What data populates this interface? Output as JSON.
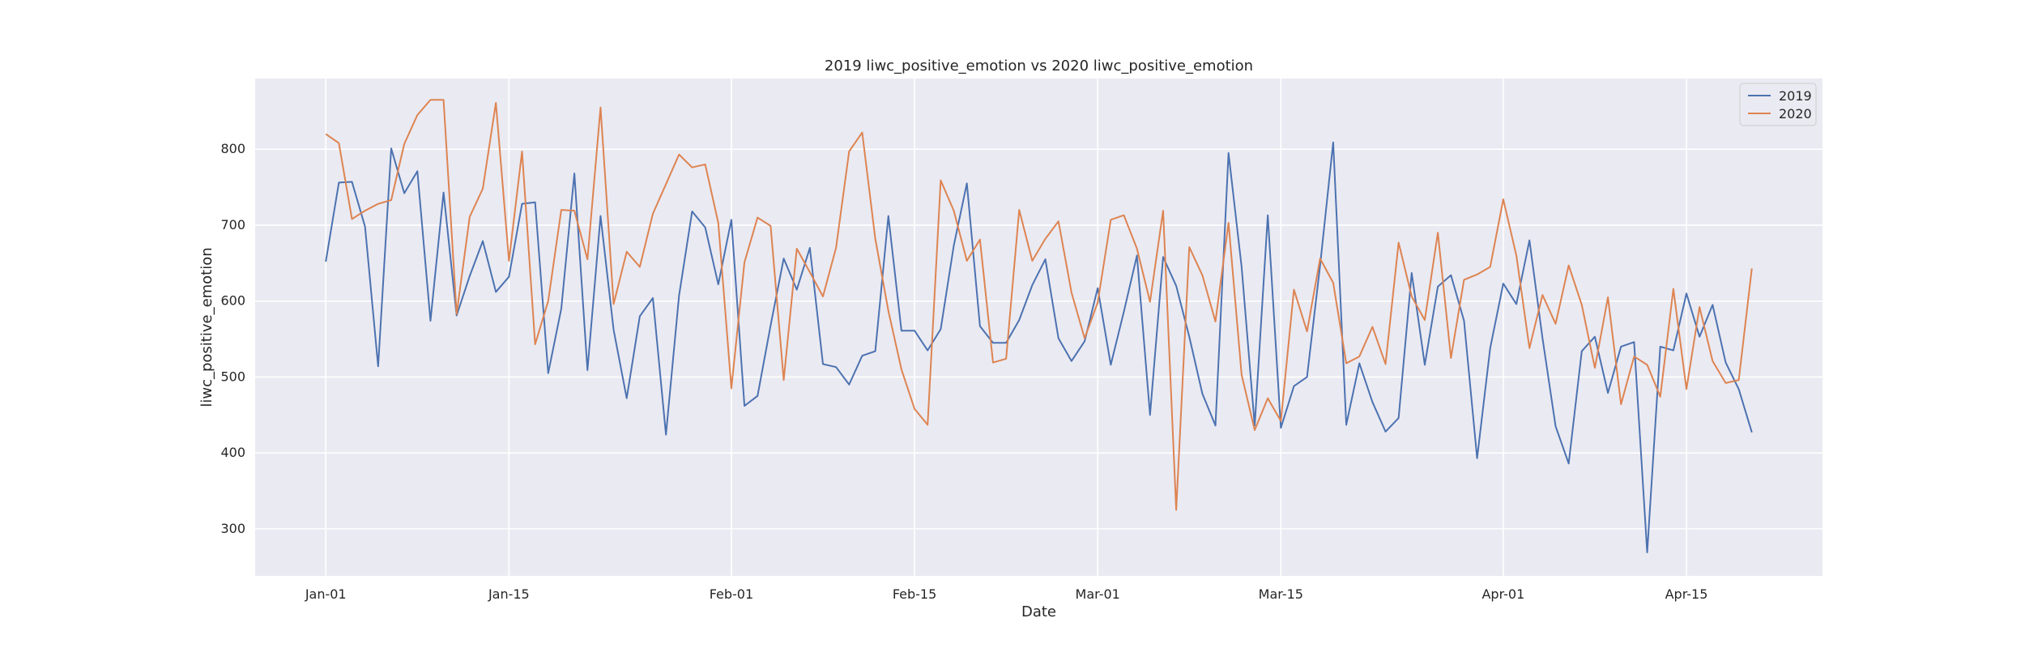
{
  "chart_data": {
    "type": "line",
    "title": "2019 liwc_positive_emotion vs 2020 liwc_positive_emotion",
    "xlabel": "Date",
    "ylabel": "liwc_positive_emotion",
    "x_ticks": [
      {
        "label": "Jan-01",
        "day": 1
      },
      {
        "label": "Jan-15",
        "day": 15
      },
      {
        "label": "Feb-01",
        "day": 32
      },
      {
        "label": "Feb-15",
        "day": 46
      },
      {
        "label": "Mar-01",
        "day": 60
      },
      {
        "label": "Mar-15",
        "day": 74
      },
      {
        "label": "Apr-01",
        "day": 91
      },
      {
        "label": "Apr-15",
        "day": 105
      }
    ],
    "y_ticks": [
      300,
      400,
      500,
      600,
      700,
      800
    ],
    "xlim": [
      -4.4,
      115.4
    ],
    "ylim": [
      238,
      893
    ],
    "grid": true,
    "legend": "top-right",
    "colors": {
      "2019": "#4c72b0",
      "2020": "#dd8452",
      "background": "#eaeaf2",
      "grid": "#ffffff"
    },
    "series": [
      {
        "name": "2019",
        "start_day": 1,
        "values": [
          652,
          756,
          757,
          698,
          514,
          801,
          742,
          771,
          574,
          743,
          581,
          633,
          679,
          612,
          632,
          728,
          730,
          505,
          590,
          768,
          509,
          712,
          562,
          472,
          580,
          604,
          424,
          607,
          718,
          697,
          622,
          707,
          462,
          475,
          568,
          656,
          615,
          670,
          517,
          513,
          490,
          528,
          534,
          712,
          561,
          561,
          535,
          563,
          673,
          755,
          567,
          545,
          545,
          575,
          621,
          655,
          551,
          521,
          547,
          617,
          516,
          586,
          660,
          450,
          658,
          620,
          553,
          478,
          436,
          795,
          645,
          436,
          713,
          433,
          488,
          500,
          647,
          809,
          437,
          518,
          467,
          428,
          446,
          637,
          516,
          619,
          634,
          574,
          393,
          538,
          623,
          596,
          680,
          551,
          435,
          386,
          534,
          553,
          479,
          540,
          546,
          269,
          540,
          535,
          610,
          553,
          595,
          519,
          484,
          427
        ]
      },
      {
        "name": "2020",
        "start_day": 1,
        "values": [
          820,
          808,
          708,
          719,
          728,
          733,
          807,
          845,
          865,
          865,
          583,
          711,
          748,
          861,
          653,
          797,
          543,
          600,
          720,
          719,
          655,
          855,
          596,
          665,
          645,
          715,
          754,
          793,
          776,
          780,
          703,
          485,
          651,
          710,
          699,
          496,
          669,
          638,
          606,
          670,
          797,
          822,
          682,
          587,
          510,
          458,
          437,
          759,
          719,
          653,
          681,
          519,
          524,
          720,
          653,
          682,
          705,
          611,
          551,
          598,
          707,
          713,
          669,
          599,
          719,
          325,
          671,
          634,
          573,
          703,
          503,
          430,
          472,
          442,
          615,
          560,
          656,
          624,
          518,
          527,
          566,
          517,
          677,
          606,
          575,
          690,
          525,
          628,
          635,
          645,
          734,
          660,
          538,
          608,
          570,
          647,
          595,
          512,
          605,
          464,
          527,
          516,
          474,
          616,
          484,
          592,
          521,
          492,
          496,
          643
        ]
      }
    ]
  }
}
